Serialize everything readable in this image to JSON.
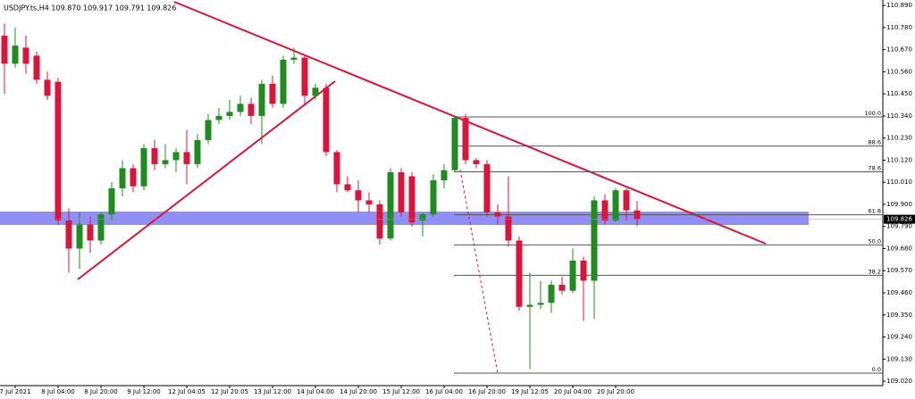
{
  "chart_data": {
    "type": "candlestick",
    "title": "USDJPY.ts,H4  109.870 109.917 109.791 109.826",
    "categories": [
      null,
      "7 Jul 2021",
      null,
      null,
      null,
      "8 Jul 04:00",
      null,
      null,
      null,
      "8 Jul 20:00",
      null,
      null,
      null,
      "9 Jul 12:00",
      null,
      null,
      null,
      "12 Jul 04:05",
      null,
      null,
      null,
      "12 Jul 20:05",
      null,
      null,
      null,
      "13 Jul 12:00",
      null,
      null,
      null,
      "14 Jul 04:00",
      null,
      null,
      null,
      "14 Jul 20:00",
      null,
      null,
      null,
      "15 Jul 12:00",
      null,
      null,
      null,
      "16 Jul 04:00",
      null,
      null,
      null,
      "16 Jul 20:00",
      null,
      null,
      null,
      "19 Jul 12:05",
      null,
      null,
      null,
      "20 Jul 04:00",
      null,
      null,
      null,
      "20 Jul 20:00",
      null,
      null
    ],
    "open": [
      110.74,
      110.6,
      110.68,
      110.64,
      110.52,
      110.51,
      109.82,
      109.68,
      109.8,
      109.72,
      109.85,
      109.98,
      110.08,
      109.99,
      110.18,
      110.1,
      110.12,
      110.16,
      110.1,
      110.22,
      110.32,
      110.34,
      110.36,
      110.4,
      110.34,
      110.5,
      110.4,
      110.62,
      110.63,
      110.44,
      110.48,
      110.16,
      110.0,
      109.97,
      109.92,
      109.9,
      109.73,
      110.06,
      110.04,
      109.82,
      109.85,
      110.02,
      110.07,
      110.33,
      110.12,
      110.1,
      109.86,
      109.84,
      109.72,
      109.39,
      109.4,
      109.41,
      109.5,
      109.47,
      109.62,
      109.52,
      109.92,
      109.82,
      109.97,
      109.87
    ],
    "high": [
      110.8,
      110.78,
      110.74,
      110.66,
      110.56,
      110.53,
      109.88,
      109.86,
      109.84,
      109.86,
      110.01,
      110.12,
      110.1,
      110.2,
      110.22,
      110.2,
      110.18,
      110.27,
      110.25,
      110.35,
      110.38,
      110.42,
      110.44,
      110.43,
      110.52,
      110.54,
      110.64,
      110.68,
      110.64,
      110.5,
      110.5,
      110.17,
      110.04,
      110.02,
      109.96,
      109.92,
      110.08,
      110.08,
      110.06,
      109.86,
      110.05,
      110.1,
      110.34,
      110.35,
      110.13,
      110.12,
      109.9,
      110.04,
      109.74,
      109.56,
      109.52,
      109.52,
      109.54,
      109.68,
      109.64,
      109.94,
      109.95,
      109.98,
      109.98,
      109.917
    ],
    "low": [
      110.45,
      110.58,
      110.55,
      110.5,
      110.42,
      109.8,
      109.56,
      109.58,
      109.66,
      109.7,
      109.82,
      109.94,
      109.96,
      109.97,
      110.07,
      110.08,
      110.06,
      110.0,
      110.08,
      110.2,
      110.3,
      110.32,
      110.34,
      110.3,
      110.2,
      110.38,
      110.38,
      110.6,
      110.4,
      110.42,
      110.14,
      109.96,
      109.96,
      109.86,
      109.86,
      109.7,
      109.72,
      109.84,
      109.79,
      109.74,
      109.84,
      109.98,
      110.06,
      110.1,
      110.08,
      109.84,
      109.8,
      109.69,
      109.37,
      109.08,
      109.38,
      109.36,
      109.45,
      109.46,
      109.32,
      109.33,
      109.8,
      109.81,
      109.82,
      109.791
    ],
    "close": [
      110.6,
      110.69,
      110.6,
      110.52,
      110.44,
      109.82,
      109.68,
      109.8,
      109.72,
      109.85,
      109.98,
      110.08,
      109.99,
      110.18,
      110.1,
      110.12,
      110.16,
      110.1,
      110.22,
      110.32,
      110.34,
      110.36,
      110.4,
      110.34,
      110.5,
      110.4,
      110.62,
      110.63,
      110.44,
      110.48,
      110.16,
      110.0,
      109.97,
      109.92,
      109.9,
      109.73,
      110.06,
      109.86,
      109.81,
      109.85,
      110.02,
      110.07,
      110.33,
      110.12,
      110.1,
      109.86,
      109.84,
      109.72,
      109.39,
      109.4,
      109.41,
      109.5,
      109.47,
      109.62,
      109.52,
      109.92,
      109.82,
      109.97,
      109.87,
      109.826
    ],
    "up_color": "#1e8c1e",
    "down_color": "#dc143c",
    "ylim": [
      108.998,
      110.917
    ],
    "yticks": [
      {
        "value": 110.89,
        "label": "110.890"
      },
      {
        "value": 110.78,
        "label": "110.780"
      },
      {
        "value": 110.67,
        "label": "110.670"
      },
      {
        "value": 110.56,
        "label": "110.560"
      },
      {
        "value": 110.45,
        "label": "110.450"
      },
      {
        "value": 110.34,
        "label": "110.340"
      },
      {
        "value": 110.23,
        "label": "110.230"
      },
      {
        "value": 110.12,
        "label": "110.120"
      },
      {
        "value": 110.01,
        "label": "110.010"
      },
      {
        "value": 109.9,
        "label": "109.900"
      },
      {
        "value": 109.79,
        "label": "109.790"
      },
      {
        "value": 109.68,
        "label": "109.680"
      },
      {
        "value": 109.57,
        "label": "109.570"
      },
      {
        "value": 109.46,
        "label": "109.460"
      },
      {
        "value": 109.35,
        "label": "109.350"
      },
      {
        "value": 109.24,
        "label": "109.240"
      },
      {
        "value": 109.13,
        "label": "109.130"
      },
      {
        "value": 109.02,
        "label": "109.020"
      }
    ],
    "last_price": 109.826,
    "fib_levels": [
      {
        "value": 110.335,
        "label": "100.0"
      },
      {
        "value": 110.19,
        "label": "88.6"
      },
      {
        "value": 110.062,
        "label": "78.6"
      },
      {
        "value": 109.848,
        "label": "61.8"
      },
      {
        "value": 109.698,
        "label": "50.0"
      },
      {
        "value": 109.547,
        "label": "38.2"
      },
      {
        "value": 109.06,
        "label": "0.0"
      }
    ]
  }
}
